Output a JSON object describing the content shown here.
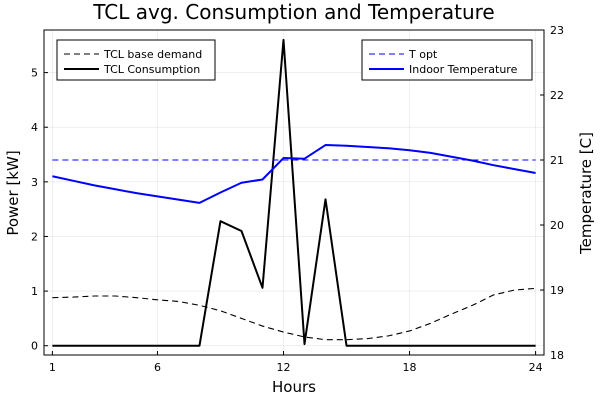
{
  "chart_data": {
    "type": "line",
    "title": "TCL avg. Consumption and Temperature",
    "xlabel": "Hours",
    "ylabel_left": "Power [kW]",
    "ylabel_right": "Temperature [C]",
    "xlim": [
      0.6,
      24.4
    ],
    "ylim_left": [
      -0.17,
      5.78
    ],
    "ylim_right": [
      18,
      23
    ],
    "x_ticks": [
      1,
      6,
      12,
      18,
      24
    ],
    "y_left_ticks": [
      0,
      1,
      2,
      3,
      4,
      5
    ],
    "y_right_ticks": [
      18,
      19,
      20,
      21,
      22,
      23
    ],
    "grid": true,
    "legend_left_placement": "top-left",
    "legend_right_placement": "top-right",
    "series": [
      {
        "name": "TCL base demand",
        "axis": "left",
        "style": "dashed",
        "color": "#000000",
        "x": [
          1,
          2,
          3,
          4,
          5,
          6,
          7,
          8,
          9,
          10,
          11,
          12,
          13,
          14,
          15,
          16,
          17,
          18,
          19,
          20,
          21,
          22,
          23,
          24
        ],
        "values": [
          0.88,
          0.89,
          0.91,
          0.91,
          0.88,
          0.84,
          0.81,
          0.74,
          0.64,
          0.5,
          0.36,
          0.25,
          0.16,
          0.11,
          0.11,
          0.13,
          0.18,
          0.27,
          0.41,
          0.58,
          0.74,
          0.93,
          1.02,
          1.05
        ]
      },
      {
        "name": "TCL Consumption",
        "axis": "left",
        "style": "solid",
        "color": "#000000",
        "x": [
          1,
          2,
          3,
          4,
          5,
          6,
          7,
          8,
          9,
          10,
          11,
          12,
          13,
          14,
          15,
          16,
          17,
          18,
          19,
          20,
          21,
          22,
          23,
          24
        ],
        "values": [
          0,
          0,
          0,
          0,
          0,
          0,
          0,
          0,
          2.28,
          2.1,
          1.06,
          5.6,
          0.03,
          2.68,
          0,
          0,
          0,
          0,
          0,
          0,
          0,
          0,
          0,
          0
        ]
      },
      {
        "name": "T opt",
        "axis": "right",
        "style": "dashed",
        "color": "#0000ff",
        "x": [
          1,
          24
        ],
        "values": [
          21.0,
          21.0
        ]
      },
      {
        "name": "Indoor Temperature",
        "axis": "right",
        "style": "solid",
        "color": "#0000ff",
        "x": [
          1,
          2,
          3,
          4,
          5,
          6,
          7,
          8,
          9,
          10,
          11,
          12,
          13,
          14,
          15,
          16,
          17,
          18,
          19,
          20,
          21,
          22,
          23,
          24
        ],
        "values": [
          20.75,
          20.68,
          20.61,
          20.55,
          20.49,
          20.44,
          20.39,
          20.34,
          20.5,
          20.65,
          20.7,
          21.03,
          21.02,
          21.23,
          21.22,
          21.2,
          21.18,
          21.15,
          21.11,
          21.05,
          20.99,
          20.92,
          20.86,
          20.8
        ]
      }
    ]
  }
}
